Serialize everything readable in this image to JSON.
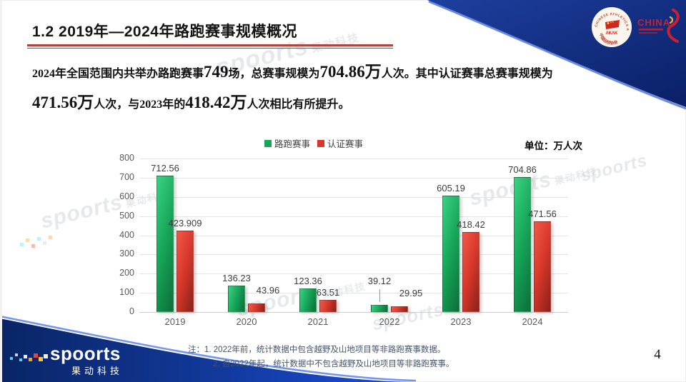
{
  "slide": {
    "title": "1.2 2019年—2024年路跑赛事规模概况",
    "page_number": "4",
    "body": {
      "line1": [
        {
          "t": "2024年全国范围内共举办路跑赛事"
        },
        {
          "t": "749"
        },
        {
          "t": "场，总赛事规模为"
        },
        {
          "t": "704.86万"
        },
        {
          "t": "人次。其中认证赛事总赛事规模为"
        }
      ],
      "line2": [
        {
          "t": "471.56万"
        },
        {
          "t": "人次，与2023年的"
        },
        {
          "t": "418.42万"
        },
        {
          "t": "人次相比有所提升。"
        }
      ]
    },
    "unit_label": "单位：万人次",
    "notes": [
      "注：1. 2022年前，统计数据中包含越野及山地项目等非路跑赛事数据。",
      "2. 自2022年起，统计数据中不包含越野及山地项目等非路跑赛事。"
    ],
    "watermark": {
      "brand": "spoorts",
      "sub": "果动科技"
    },
    "footer_logo": {
      "brand": "spoorts",
      "sub": "果动科技"
    },
    "header_logos": {
      "caa_top": "CHINESE ATHLETICS ASSOCIATION",
      "caa_bottom": "中国田径协会",
      "china": "CHINA"
    },
    "colors": {
      "title_underline": "#b2423a",
      "note_text": "#44546a",
      "navy": "#132f7e",
      "bright_blue": "#1c49d6"
    }
  },
  "chart_data": {
    "type": "bar",
    "title": "",
    "categories": [
      "2019",
      "2020",
      "2021",
      "2022",
      "2023",
      "2024"
    ],
    "series": [
      {
        "name": "路跑赛事",
        "color_light": "#3bd183",
        "color": "#17a659",
        "color_dark": "#0b6e38",
        "values": [
          712.56,
          136.23,
          123.36,
          39.12,
          605.19,
          704.86
        ]
      },
      {
        "name": "认证赛事",
        "color_light": "#ef5a48",
        "color": "#d8372a",
        "color_dark": "#8a2118",
        "values": [
          423.909,
          43.96,
          63.51,
          29.95,
          418.42,
          471.56
        ]
      }
    ],
    "ylim": [
      0,
      800
    ],
    "ytick_step": 100,
    "grid": true,
    "legend_position": "top-center",
    "unit": "万人次",
    "xlabel": "",
    "ylabel": ""
  }
}
